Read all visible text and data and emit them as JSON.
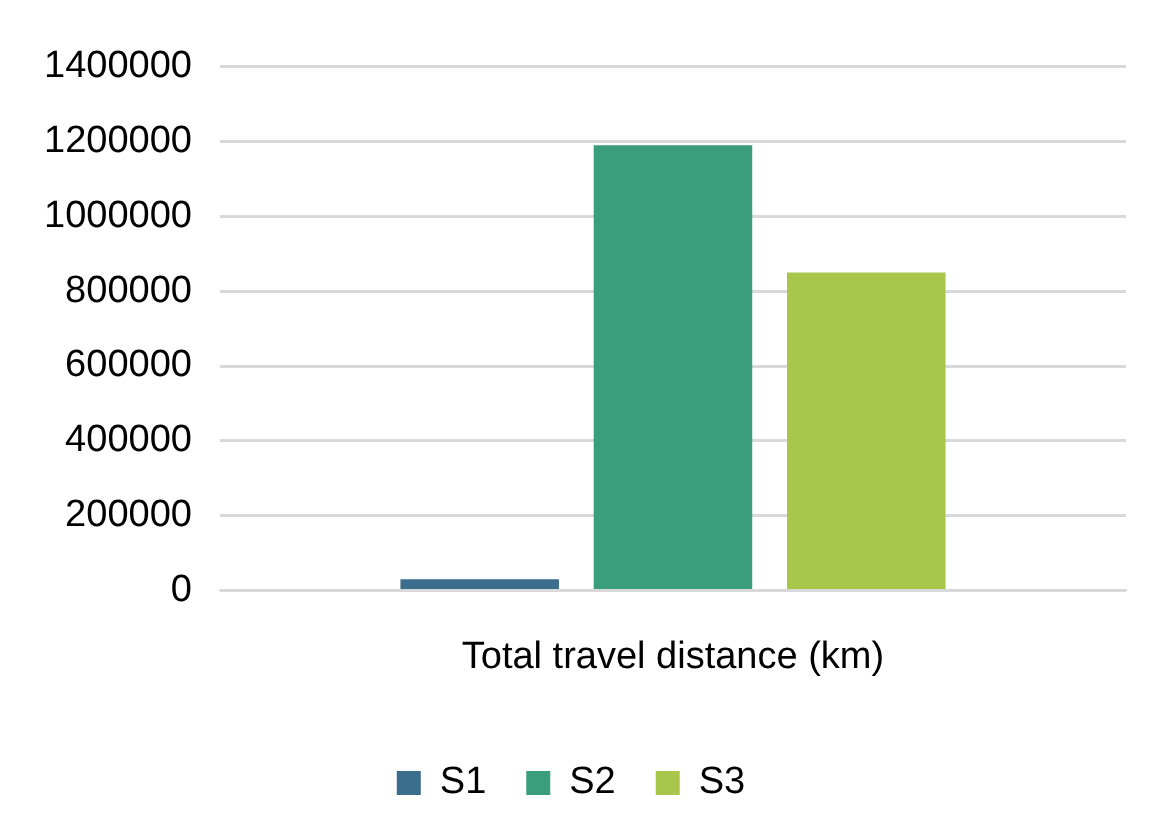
{
  "chart_data": {
    "type": "bar",
    "categories": [
      "Total travel distance (km)"
    ],
    "series": [
      {
        "name": "S1",
        "color": "#3b6e8c",
        "values": [
          30000
        ]
      },
      {
        "name": "S2",
        "color": "#3a9e7c",
        "values": [
          1190000
        ]
      },
      {
        "name": "S3",
        "color": "#a8c64a",
        "values": [
          850000
        ]
      }
    ],
    "ylim": [
      0,
      1400000
    ],
    "yticks": [
      0,
      200000,
      400000,
      600000,
      800000,
      1000000,
      1200000,
      1400000
    ],
    "grid": "y",
    "legend": "bottom"
  }
}
